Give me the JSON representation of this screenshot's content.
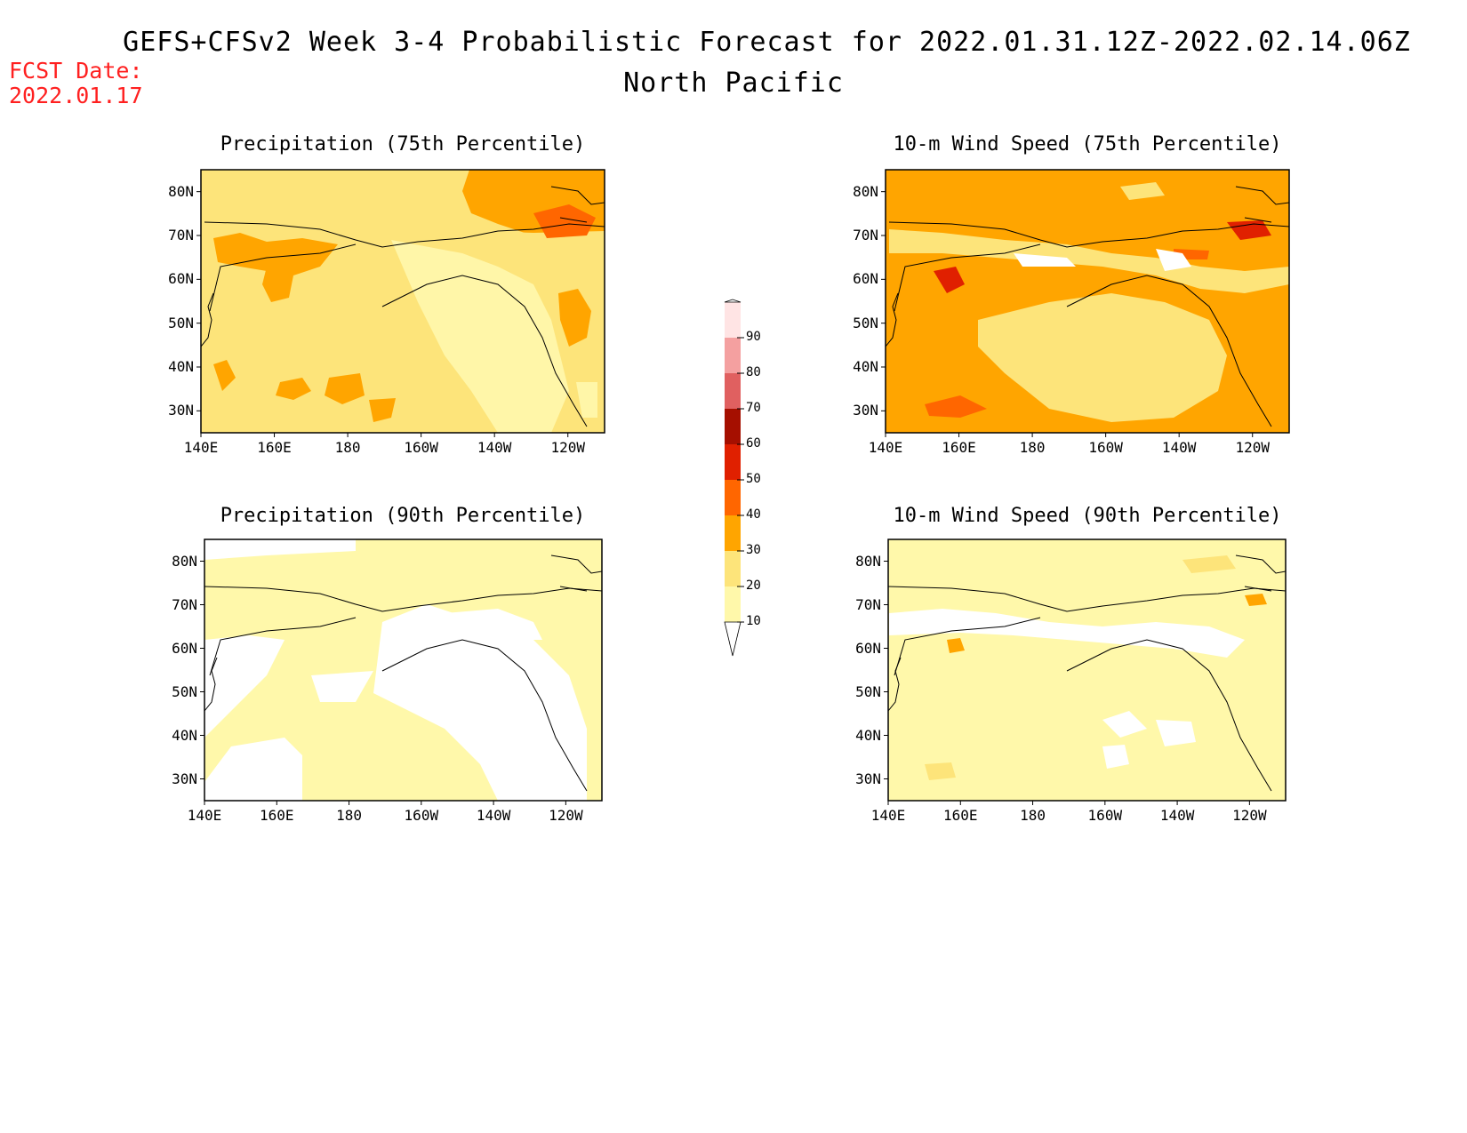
{
  "title": {
    "line1": "GEFS+CFSv2 Week 3-4 Probabilistic Forecast for 2022.01.31.12Z-2022.02.14.06Z",
    "line2": "North Pacific"
  },
  "fcst_date": {
    "label": "FCST Date:",
    "value": "2022.01.17"
  },
  "colorbar": {
    "levels": [
      "10",
      "20",
      "30",
      "40",
      "50",
      "60",
      "70",
      "80",
      "90"
    ],
    "colors": [
      "#fff8aa",
      "#fde47a",
      "#ffa500",
      "#ff6600",
      "#e02000",
      "#a50f00",
      "#e06060",
      "#f4a0a0",
      "#ffe4e4"
    ]
  },
  "axes": {
    "lon_labels": [
      "140E",
      "160E",
      "180",
      "160W",
      "140W",
      "120W"
    ],
    "lat_labels": [
      "80N",
      "70N",
      "60N",
      "50N",
      "40N",
      "30N"
    ]
  },
  "panels": [
    {
      "title": "Precipitation (75th Percentile)",
      "dominant_level": "20-30",
      "max_level": "40-50"
    },
    {
      "title": "10-m Wind Speed (75th Percentile)",
      "dominant_level": "30-40",
      "max_level": "50-60"
    },
    {
      "title": "Precipitation (90th Percentile)",
      "dominant_level": "10-20",
      "max_level": "10-20"
    },
    {
      "title": "10-m Wind Speed (90th Percentile)",
      "dominant_level": "10-20",
      "max_level": "30-40"
    }
  ]
}
